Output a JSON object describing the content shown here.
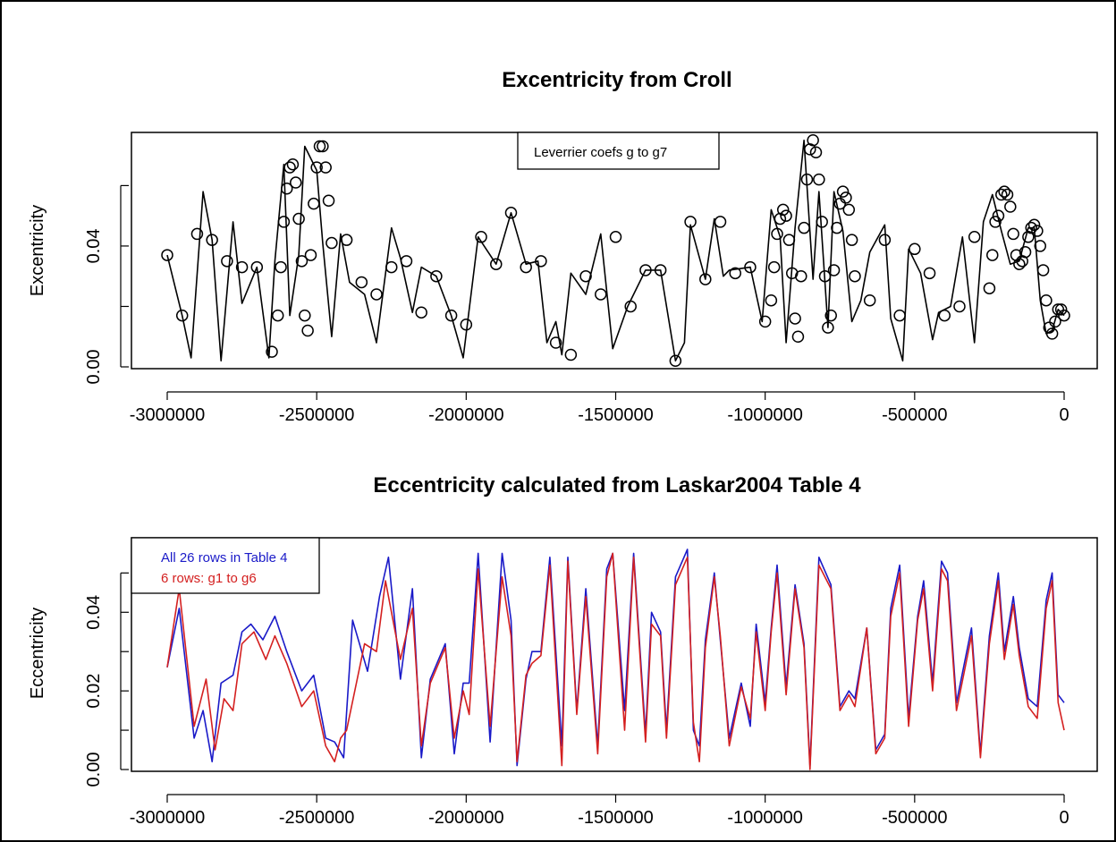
{
  "chart_data": [
    {
      "type": "line",
      "title": "Excentricity from Croll",
      "xlabel": "",
      "ylabel": "Excentricity",
      "xlim": [
        -3000000,
        0
      ],
      "ylim": [
        0,
        0.077
      ],
      "xticks": [
        "-3000000",
        "-2500000",
        "-2000000",
        "-1500000",
        "-1000000",
        "-500000",
        "0"
      ],
      "xtick_values": [
        -3000000,
        -2500000,
        -2000000,
        -1500000,
        -1000000,
        -500000,
        0
      ],
      "yticks": [
        "0.00",
        "0.04"
      ],
      "ytick_values": [
        0,
        0.02,
        0.04,
        0.06
      ],
      "grid": false,
      "legend": {
        "position": "top-center",
        "entries": [
          "Leverrier coefs g to g7"
        ]
      },
      "series": [
        {
          "style": "line",
          "color": "#000000",
          "x": [
            -3000000,
            -2950000,
            -2920000,
            -2880000,
            -2850000,
            -2820000,
            -2780000,
            -2750000,
            -2700000,
            -2660000,
            -2640000,
            -2610000,
            -2590000,
            -2560000,
            -2540000,
            -2500000,
            -2480000,
            -2450000,
            -2420000,
            -2390000,
            -2340000,
            -2300000,
            -2250000,
            -2220000,
            -2180000,
            -2150000,
            -2100000,
            -2050000,
            -2010000,
            -1960000,
            -1900000,
            -1850000,
            -1800000,
            -1760000,
            -1730000,
            -1700000,
            -1680000,
            -1650000,
            -1600000,
            -1550000,
            -1510000,
            -1460000,
            -1400000,
            -1350000,
            -1300000,
            -1270000,
            -1250000,
            -1200000,
            -1170000,
            -1140000,
            -1120000,
            -1050000,
            -1010000,
            -980000,
            -950000,
            -930000,
            -900000,
            -870000,
            -840000,
            -820000,
            -790000,
            -770000,
            -740000,
            -710000,
            -680000,
            -650000,
            -600000,
            -580000,
            -540000,
            -520000,
            -480000,
            -440000,
            -420000,
            -380000,
            -340000,
            -300000,
            -270000,
            -240000,
            -210000,
            -180000,
            -150000,
            -120000,
            -100000,
            -80000,
            -60000,
            -40000,
            -20000,
            0
          ],
          "y": [
            0.037,
            0.017,
            0.003,
            0.058,
            0.042,
            0.002,
            0.048,
            0.021,
            0.033,
            0.003,
            0.035,
            0.067,
            0.017,
            0.037,
            0.073,
            0.065,
            0.041,
            0.01,
            0.044,
            0.028,
            0.024,
            0.008,
            0.046,
            0.036,
            0.018,
            0.033,
            0.03,
            0.017,
            0.003,
            0.043,
            0.034,
            0.051,
            0.034,
            0.035,
            0.008,
            0.015,
            0.004,
            0.031,
            0.024,
            0.044,
            0.006,
            0.02,
            0.032,
            0.032,
            0.002,
            0.008,
            0.047,
            0.029,
            0.049,
            0.03,
            0.032,
            0.033,
            0.015,
            0.052,
            0.043,
            0.008,
            0.046,
            0.075,
            0.029,
            0.058,
            0.013,
            0.058,
            0.045,
            0.015,
            0.022,
            0.038,
            0.047,
            0.016,
            0.002,
            0.039,
            0.031,
            0.009,
            0.018,
            0.02,
            0.043,
            0.008,
            0.048,
            0.057,
            0.045,
            0.034,
            0.035,
            0.046,
            0.046,
            0.022,
            0.011,
            0.012,
            0.019,
            0.017
          ],
          "marker_x": [
            -3000000,
            -2950000,
            -2900000,
            -2850000,
            -2800000,
            -2750000,
            -2700000,
            -2650000,
            -2630000,
            -2620000,
            -2610000,
            -2600000,
            -2590000,
            -2580000,
            -2570000,
            -2560000,
            -2550000,
            -2540000,
            -2530000,
            -2520000,
            -2510000,
            -2500000,
            -2490000,
            -2480000,
            -2470000,
            -2460000,
            -2450000,
            -2400000,
            -2350000,
            -2300000,
            -2250000,
            -2200000,
            -2150000,
            -2100000,
            -2050000,
            -2000000,
            -1950000,
            -1900000,
            -1850000,
            -1800000,
            -1750000,
            -1700000,
            -1650000,
            -1600000,
            -1550000,
            -1500000,
            -1450000,
            -1400000,
            -1350000,
            -1300000,
            -1250000,
            -1200000,
            -1150000,
            -1100000,
            -1050000,
            -1000000,
            -980000,
            -970000,
            -960000,
            -950000,
            -940000,
            -930000,
            -920000,
            -910000,
            -900000,
            -890000,
            -880000,
            -870000,
            -860000,
            -850000,
            -840000,
            -830000,
            -820000,
            -810000,
            -800000,
            -790000,
            -780000,
            -770000,
            -760000,
            -750000,
            -740000,
            -730000,
            -720000,
            -710000,
            -700000,
            -650000,
            -600000,
            -550000,
            -500000,
            -450000,
            -400000,
            -350000,
            -300000,
            -250000,
            -240000,
            -230000,
            -220000,
            -210000,
            -200000,
            -190000,
            -180000,
            -170000,
            -160000,
            -150000,
            -140000,
            -130000,
            -120000,
            -110000,
            -100000,
            -90000,
            -80000,
            -70000,
            -60000,
            -50000,
            -40000,
            -30000,
            -20000,
            -10000,
            0
          ],
          "marker_y": [
            0.037,
            0.017,
            0.044,
            0.042,
            0.035,
            0.033,
            0.033,
            0.005,
            0.017,
            0.033,
            0.048,
            0.059,
            0.066,
            0.067,
            0.061,
            0.049,
            0.035,
            0.017,
            0.012,
            0.037,
            0.054,
            0.066,
            0.073,
            0.073,
            0.066,
            0.055,
            0.041,
            0.042,
            0.028,
            0.024,
            0.033,
            0.035,
            0.018,
            0.03,
            0.017,
            0.014,
            0.043,
            0.034,
            0.051,
            0.033,
            0.035,
            0.008,
            0.004,
            0.03,
            0.024,
            0.043,
            0.02,
            0.032,
            0.032,
            0.002,
            0.048,
            0.029,
            0.048,
            0.031,
            0.033,
            0.015,
            0.022,
            0.033,
            0.044,
            0.049,
            0.052,
            0.05,
            0.042,
            0.031,
            0.016,
            0.01,
            0.03,
            0.046,
            0.062,
            0.072,
            0.075,
            0.071,
            0.062,
            0.048,
            0.03,
            0.013,
            0.017,
            0.032,
            0.046,
            0.054,
            0.058,
            0.056,
            0.052,
            0.042,
            0.03,
            0.022,
            0.042,
            0.017,
            0.039,
            0.031,
            0.017,
            0.02,
            0.043,
            0.026,
            0.037,
            0.048,
            0.05,
            0.057,
            0.058,
            0.057,
            0.053,
            0.044,
            0.037,
            0.034,
            0.035,
            0.038,
            0.043,
            0.046,
            0.047,
            0.045,
            0.04,
            0.032,
            0.022,
            0.013,
            0.011,
            0.015,
            0.019,
            0.019,
            0.017
          ]
        }
      ]
    },
    {
      "type": "line",
      "title": "Eccentricity calculated from Laskar2004 Table 4",
      "xlabel": "",
      "ylabel": "Eccentricity",
      "xlim": [
        -3000000,
        0
      ],
      "ylim": [
        0,
        0.0585
      ],
      "xticks": [
        "-3000000",
        "-2500000",
        "-2000000",
        "-1500000",
        "-1000000",
        "-500000",
        "0"
      ],
      "xtick_values": [
        -3000000,
        -2500000,
        -2000000,
        -1500000,
        -1000000,
        -500000,
        0
      ],
      "yticks": [
        "0.00",
        "0.02",
        "0.04"
      ],
      "ytick_values": [
        0,
        0.01,
        0.02,
        0.03,
        0.04,
        0.05
      ],
      "grid": false,
      "legend": {
        "position": "top-left",
        "entries": [
          "All 26 rows in Table 4",
          "6 rows: g1 to g6"
        ]
      },
      "series": [
        {
          "name": "All 26 rows in Table 4",
          "color": "#1a1ac8",
          "x": [
            -3000000,
            -2960000,
            -2910000,
            -2880000,
            -2850000,
            -2820000,
            -2780000,
            -2750000,
            -2720000,
            -2680000,
            -2640000,
            -2600000,
            -2550000,
            -2510000,
            -2470000,
            -2440000,
            -2410000,
            -2380000,
            -2330000,
            -2290000,
            -2260000,
            -2220000,
            -2180000,
            -2150000,
            -2120000,
            -2070000,
            -2040000,
            -2010000,
            -1990000,
            -1960000,
            -1920000,
            -1880000,
            -1850000,
            -1830000,
            -1800000,
            -1780000,
            -1750000,
            -1720000,
            -1680000,
            -1660000,
            -1630000,
            -1600000,
            -1560000,
            -1530000,
            -1510000,
            -1470000,
            -1440000,
            -1400000,
            -1380000,
            -1350000,
            -1330000,
            -1300000,
            -1260000,
            -1240000,
            -1220000,
            -1200000,
            -1170000,
            -1150000,
            -1120000,
            -1080000,
            -1050000,
            -1030000,
            -1000000,
            -980000,
            -960000,
            -930000,
            -900000,
            -870000,
            -850000,
            -820000,
            -780000,
            -750000,
            -720000,
            -700000,
            -660000,
            -630000,
            -600000,
            -580000,
            -550000,
            -520000,
            -490000,
            -470000,
            -440000,
            -410000,
            -390000,
            -360000,
            -310000,
            -280000,
            -250000,
            -220000,
            -200000,
            -170000,
            -150000,
            -120000,
            -90000,
            -60000,
            -40000,
            -20000,
            0
          ],
          "y": [
            0.026,
            0.041,
            0.008,
            0.015,
            0.002,
            0.022,
            0.024,
            0.035,
            0.037,
            0.033,
            0.039,
            0.03,
            0.02,
            0.024,
            0.008,
            0.007,
            0.003,
            0.038,
            0.025,
            0.044,
            0.054,
            0.023,
            0.046,
            0.003,
            0.023,
            0.032,
            0.004,
            0.022,
            0.022,
            0.055,
            0.007,
            0.055,
            0.038,
            0.001,
            0.023,
            0.03,
            0.03,
            0.054,
            0.006,
            0.054,
            0.015,
            0.046,
            0.006,
            0.051,
            0.055,
            0.015,
            0.055,
            0.009,
            0.04,
            0.035,
            0.01,
            0.049,
            0.056,
            0.01,
            0.006,
            0.033,
            0.05,
            0.033,
            0.008,
            0.022,
            0.011,
            0.037,
            0.017,
            0.036,
            0.052,
            0.021,
            0.047,
            0.032,
            0.001,
            0.054,
            0.047,
            0.016,
            0.02,
            0.018,
            0.036,
            0.005,
            0.009,
            0.041,
            0.052,
            0.013,
            0.039,
            0.048,
            0.022,
            0.053,
            0.05,
            0.017,
            0.036,
            0.004,
            0.034,
            0.05,
            0.03,
            0.044,
            0.031,
            0.018,
            0.016,
            0.043,
            0.05,
            0.019,
            0.017
          ],
          "values_estimated": true
        },
        {
          "name": "6 rows: g1 to g6",
          "color": "#d42020",
          "x": [
            -3000000,
            -2960000,
            -2910000,
            -2870000,
            -2840000,
            -2810000,
            -2780000,
            -2750000,
            -2710000,
            -2670000,
            -2640000,
            -2600000,
            -2550000,
            -2510000,
            -2470000,
            -2440000,
            -2420000,
            -2400000,
            -2340000,
            -2300000,
            -2270000,
            -2220000,
            -2180000,
            -2150000,
            -2120000,
            -2070000,
            -2040000,
            -2010000,
            -1990000,
            -1960000,
            -1920000,
            -1880000,
            -1850000,
            -1830000,
            -1800000,
            -1780000,
            -1750000,
            -1720000,
            -1680000,
            -1660000,
            -1630000,
            -1600000,
            -1560000,
            -1530000,
            -1510000,
            -1470000,
            -1440000,
            -1400000,
            -1380000,
            -1350000,
            -1330000,
            -1300000,
            -1260000,
            -1240000,
            -1220000,
            -1200000,
            -1170000,
            -1150000,
            -1120000,
            -1080000,
            -1050000,
            -1030000,
            -1000000,
            -980000,
            -960000,
            -930000,
            -900000,
            -870000,
            -850000,
            -820000,
            -780000,
            -750000,
            -720000,
            -700000,
            -660000,
            -630000,
            -600000,
            -580000,
            -550000,
            -520000,
            -490000,
            -470000,
            -440000,
            -410000,
            -390000,
            -360000,
            -310000,
            -280000,
            -250000,
            -220000,
            -200000,
            -170000,
            -150000,
            -120000,
            -90000,
            -60000,
            -40000,
            -20000,
            0
          ],
          "y": [
            0.026,
            0.046,
            0.011,
            0.023,
            0.005,
            0.018,
            0.015,
            0.032,
            0.035,
            0.028,
            0.034,
            0.027,
            0.016,
            0.02,
            0.006,
            0.002,
            0.008,
            0.01,
            0.032,
            0.03,
            0.048,
            0.028,
            0.041,
            0.006,
            0.022,
            0.031,
            0.008,
            0.02,
            0.014,
            0.051,
            0.011,
            0.049,
            0.034,
            0.002,
            0.024,
            0.027,
            0.029,
            0.052,
            0.001,
            0.053,
            0.014,
            0.044,
            0.004,
            0.049,
            0.055,
            0.01,
            0.054,
            0.007,
            0.037,
            0.034,
            0.008,
            0.047,
            0.054,
            0.012,
            0.002,
            0.031,
            0.049,
            0.034,
            0.006,
            0.021,
            0.013,
            0.035,
            0.015,
            0.035,
            0.05,
            0.019,
            0.046,
            0.031,
            0.0,
            0.052,
            0.046,
            0.015,
            0.019,
            0.016,
            0.036,
            0.004,
            0.008,
            0.039,
            0.05,
            0.011,
            0.038,
            0.046,
            0.02,
            0.051,
            0.048,
            0.015,
            0.034,
            0.003,
            0.032,
            0.048,
            0.028,
            0.042,
            0.029,
            0.016,
            0.013,
            0.041,
            0.048,
            0.017,
            0.01
          ],
          "values_estimated": true
        }
      ]
    }
  ]
}
